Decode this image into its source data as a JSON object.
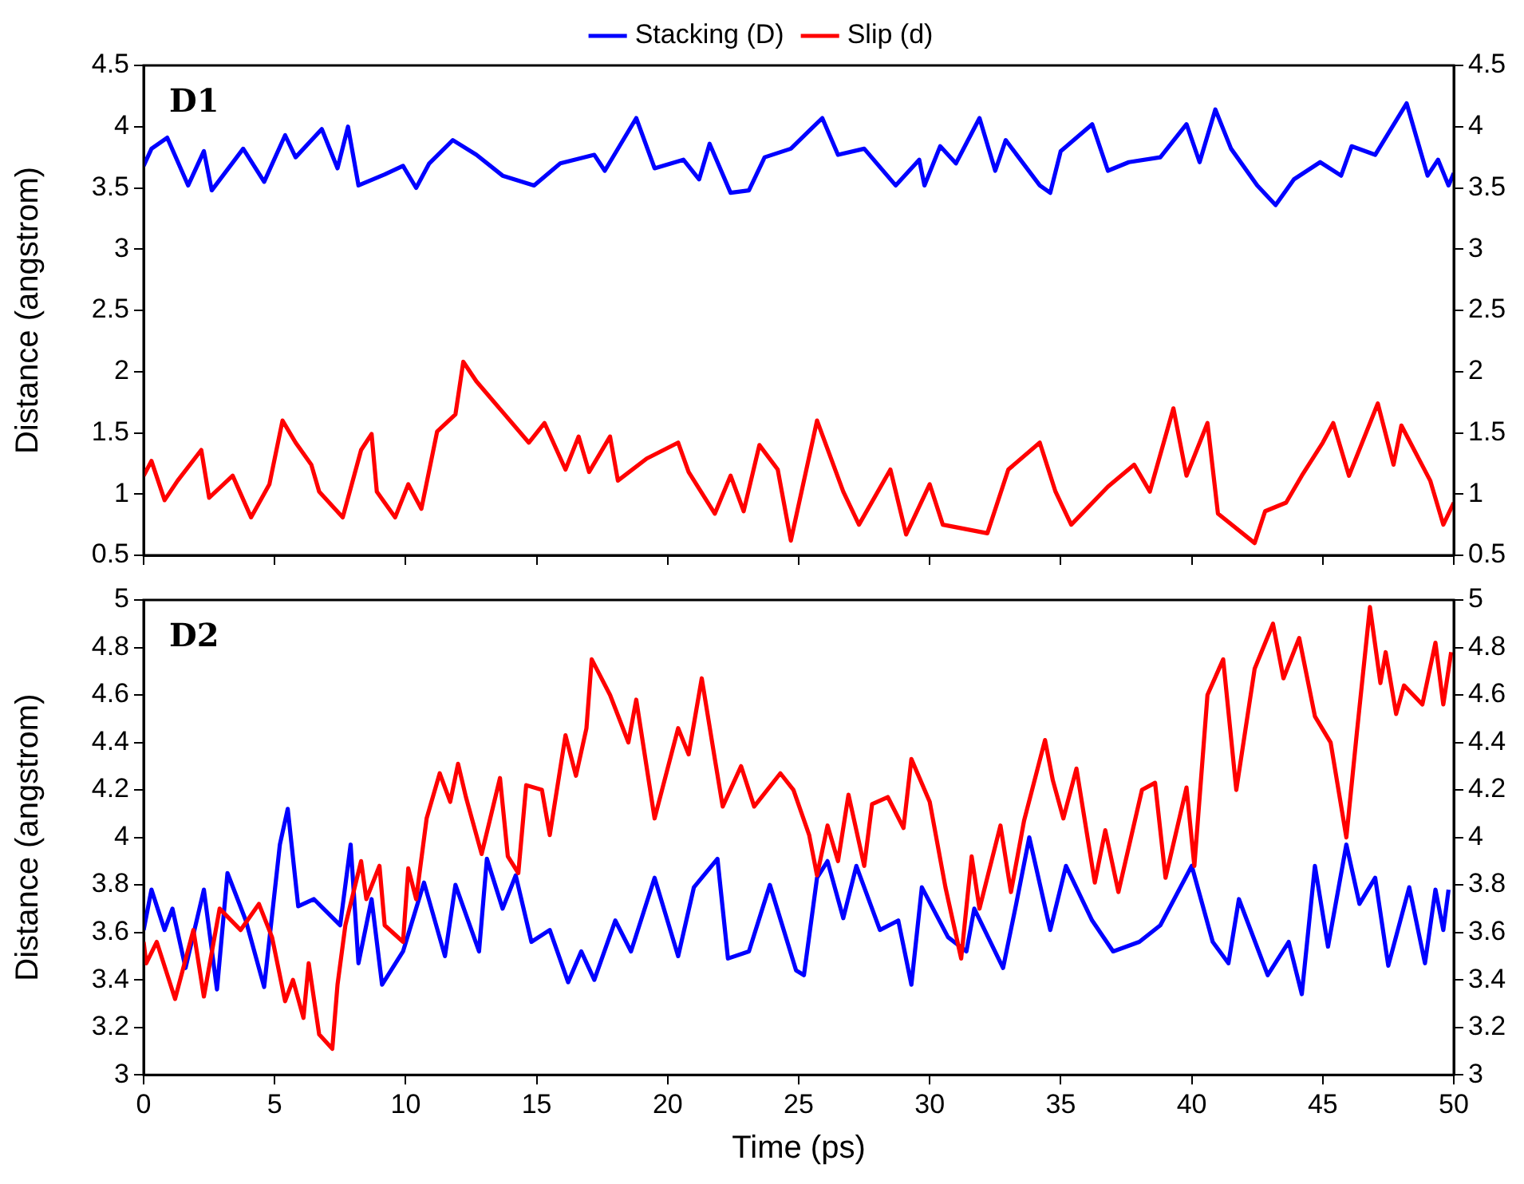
{
  "chart_data": [
    {
      "type": "line",
      "legend": "top",
      "tick_labels": "y",
      "grid": false,
      "marker": "none",
      "line_style": "solid",
      "ylabel": "Distance (angstrom)",
      "annotations": [
        "D1"
      ],
      "xlim": [
        0,
        50
      ],
      "xticks": [
        0,
        5,
        10,
        15,
        20,
        25,
        30,
        35,
        40,
        45,
        50
      ],
      "ylim": [
        0.5,
        4.5
      ],
      "yticks": [
        0.5,
        1,
        1.5,
        2,
        2.5,
        3,
        3.5,
        4,
        4.5
      ],
      "y2lim": [
        0.5,
        4.5
      ],
      "y2ticks": [
        0.5,
        1,
        1.5,
        2,
        2.5,
        3,
        3.5,
        4,
        4.5
      ],
      "series": [
        {
          "name": "Stacking (D)",
          "color": "#0000ff",
          "x": [
            0,
            0.3,
            0.9,
            1.7,
            2.3,
            2.6,
            3.8,
            4.6,
            5.4,
            5.8,
            6.8,
            7.4,
            7.8,
            8.2,
            9.2,
            9.9,
            10.4,
            10.9,
            11.8,
            12.7,
            13.7,
            14.9,
            15.9,
            17.2,
            17.6,
            18.8,
            19.5,
            20.6,
            21.2,
            21.6,
            22.4,
            23.1,
            23.7,
            24.7,
            25.9,
            26.5,
            27.5,
            28.7,
            29.6,
            29.8,
            30.4,
            31,
            31.9,
            32.5,
            32.9,
            34.2,
            34.6,
            35,
            36.2,
            36.8,
            37.6,
            38.8,
            39.8,
            40.3,
            40.9,
            41.5,
            42.5,
            43.2,
            43.9,
            44.9,
            45.7,
            46.1,
            47,
            47.6,
            48.2,
            49,
            49.4,
            49.8,
            50
          ],
          "values": [
            3.68,
            3.82,
            3.91,
            3.52,
            3.8,
            3.48,
            3.82,
            3.55,
            3.93,
            3.75,
            3.98,
            3.66,
            4,
            3.52,
            3.61,
            3.68,
            3.5,
            3.7,
            3.89,
            3.77,
            3.6,
            3.52,
            3.7,
            3.77,
            3.64,
            4.07,
            3.66,
            3.73,
            3.57,
            3.86,
            3.46,
            3.48,
            3.75,
            3.82,
            4.07,
            3.77,
            3.82,
            3.52,
            3.73,
            3.52,
            3.84,
            3.7,
            4.07,
            3.64,
            3.89,
            3.52,
            3.46,
            3.8,
            4.02,
            3.64,
            3.71,
            3.75,
            4.02,
            3.71,
            4.14,
            3.82,
            3.52,
            3.36,
            3.57,
            3.71,
            3.6,
            3.84,
            3.77,
            3.98,
            4.19,
            3.6,
            3.73,
            3.52,
            3.62
          ]
        },
        {
          "name": "Slip (d)",
          "color": "#ff0000",
          "x": [
            0,
            0.3,
            0.8,
            1.3,
            2.2,
            2.5,
            3.4,
            4.1,
            4.8,
            5.3,
            5.8,
            6.4,
            6.7,
            7.6,
            8.3,
            8.7,
            8.9,
            9.6,
            10.1,
            10.6,
            11.2,
            11.9,
            12.2,
            12.7,
            13.7,
            14.7,
            15.3,
            16.1,
            16.6,
            17,
            17.8,
            18.1,
            19.2,
            20.4,
            20.8,
            21.8,
            22.4,
            22.9,
            23.5,
            24.2,
            24.7,
            25.7,
            26.7,
            27.3,
            28.5,
            29.1,
            30,
            30.5,
            32.2,
            33,
            34.2,
            34.8,
            35.4,
            36.8,
            37.8,
            38.4,
            39.3,
            39.8,
            40.6,
            41,
            42.4,
            42.8,
            43.6,
            44.2,
            45,
            45.4,
            46,
            47.1,
            47.7,
            48,
            49.1,
            49.6,
            50
          ],
          "values": [
            1.15,
            1.27,
            0.95,
            1.11,
            1.36,
            0.97,
            1.15,
            0.81,
            1.08,
            1.6,
            1.42,
            1.24,
            1.02,
            0.81,
            1.36,
            1.49,
            1.02,
            0.81,
            1.08,
            0.88,
            1.51,
            1.65,
            2.08,
            1.92,
            1.67,
            1.42,
            1.58,
            1.2,
            1.47,
            1.18,
            1.47,
            1.11,
            1.29,
            1.42,
            1.18,
            0.84,
            1.15,
            0.86,
            1.4,
            1.2,
            0.62,
            1.6,
            1.02,
            0.75,
            1.2,
            0.67,
            1.08,
            0.75,
            0.68,
            1.2,
            1.42,
            1.02,
            0.75,
            1.06,
            1.24,
            1.02,
            1.7,
            1.15,
            1.58,
            0.84,
            0.6,
            0.86,
            0.93,
            1.15,
            1.42,
            1.58,
            1.15,
            1.74,
            1.24,
            1.56,
            1.11,
            0.75,
            0.93
          ]
        }
      ]
    },
    {
      "type": "line",
      "legend": false,
      "grid": false,
      "marker": "none",
      "line_style": "solid",
      "xlabel": "Time (ps)",
      "ylabel": "Distance (angstrom)",
      "annotations": [
        "D2"
      ],
      "xlim": [
        0,
        50
      ],
      "xticks": [
        0,
        5,
        10,
        15,
        20,
        25,
        30,
        35,
        40,
        45,
        50
      ],
      "ylim": [
        3,
        5
      ],
      "yticks": [
        3,
        3.2,
        3.4,
        3.6,
        3.8,
        4,
        4.2,
        4.4,
        4.6,
        4.8,
        5
      ],
      "y2lim": [
        3,
        5
      ],
      "y2ticks": [
        3,
        3.2,
        3.4,
        3.6,
        3.8,
        4,
        4.2,
        4.4,
        4.6,
        4.8,
        5
      ],
      "series": [
        {
          "color": "#ff0000",
          "x": [
            0,
            0.1,
            0.5,
            1.2,
            1.9,
            2.3,
            2.9,
            3.7,
            4.4,
            4.9,
            5.4,
            5.7,
            6.1,
            6.3,
            6.7,
            7.2,
            7.4,
            7.7,
            8.3,
            8.5,
            9,
            9.2,
            9.9,
            10.1,
            10.4,
            10.8,
            11.3,
            11.7,
            12,
            12.3,
            12.9,
            13.6,
            13.9,
            14.3,
            14.6,
            15.2,
            15.5,
            16.1,
            16.5,
            16.9,
            17.1,
            17.8,
            18.5,
            18.8,
            19.5,
            20.4,
            20.8,
            21.3,
            21.8,
            22.1,
            22.8,
            23.3,
            24.3,
            24.8,
            25.4,
            25.7,
            26.1,
            26.5,
            26.9,
            27.5,
            27.8,
            28.4,
            29,
            29.3,
            30,
            30.6,
            31.2,
            31.6,
            31.9,
            32.7,
            33.1,
            33.6,
            34.4,
            34.7,
            35.1,
            35.6,
            36.3,
            36.7,
            37.2,
            38.1,
            38.6,
            39,
            39.8,
            40.1,
            40.6,
            41.2,
            41.7,
            42.4,
            43.1,
            43.5,
            44.1,
            44.7,
            45.3,
            45.9,
            46.3,
            46.8,
            47.2,
            47.4,
            47.8,
            48.1,
            48.8,
            49.3,
            49.6,
            49.9
          ],
          "values": [
            3.56,
            3.47,
            3.56,
            3.32,
            3.61,
            3.33,
            3.7,
            3.61,
            3.72,
            3.58,
            3.31,
            3.4,
            3.24,
            3.47,
            3.17,
            3.11,
            3.38,
            3.63,
            3.9,
            3.74,
            3.88,
            3.63,
            3.56,
            3.87,
            3.74,
            4.08,
            4.27,
            4.15,
            4.31,
            4.17,
            3.93,
            4.25,
            3.92,
            3.85,
            4.22,
            4.2,
            4.01,
            4.43,
            4.26,
            4.46,
            4.75,
            4.6,
            4.4,
            4.58,
            4.08,
            4.46,
            4.35,
            4.67,
            4.33,
            4.13,
            4.3,
            4.13,
            4.27,
            4.2,
            4.01,
            3.84,
            4.05,
            3.9,
            4.18,
            3.88,
            4.14,
            4.17,
            4.04,
            4.33,
            4.15,
            3.79,
            3.49,
            3.92,
            3.7,
            4.05,
            3.77,
            4.07,
            4.41,
            4.24,
            4.08,
            4.29,
            3.81,
            4.03,
            3.77,
            4.2,
            4.23,
            3.83,
            4.21,
            3.88,
            4.6,
            4.75,
            4.2,
            4.71,
            4.9,
            4.67,
            4.84,
            4.51,
            4.4,
            4,
            4.44,
            4.97,
            4.65,
            4.78,
            4.52,
            4.64,
            4.56,
            4.82,
            4.56,
            4.78
          ]
        },
        {
          "color": "#0000ff",
          "x": [
            0,
            0.3,
            0.8,
            1.1,
            1.6,
            2.3,
            2.8,
            3.2,
            3.9,
            4.6,
            5.2,
            5.5,
            5.9,
            6.5,
            7.5,
            7.9,
            8.2,
            8.7,
            9.1,
            9.9,
            10.7,
            11.5,
            11.9,
            12.8,
            13.1,
            13.7,
            14.2,
            14.8,
            15.5,
            16.2,
            16.7,
            17.2,
            18,
            18.6,
            19.5,
            20.4,
            21,
            21.9,
            22.3,
            23.1,
            23.9,
            24.9,
            25.2,
            25.7,
            26.1,
            26.7,
            27.2,
            28.1,
            28.8,
            29.3,
            29.7,
            30.7,
            31.4,
            31.7,
            32.8,
            33.3,
            33.8,
            34.6,
            35.2,
            36.2,
            37,
            38,
            38.8,
            40,
            40.8,
            41.4,
            41.8,
            42.9,
            43.7,
            44.2,
            44.7,
            45.2,
            45.9,
            46.4,
            47,
            47.5,
            48.3,
            48.9,
            49.3,
            49.6,
            49.8
          ],
          "values": [
            3.61,
            3.78,
            3.61,
            3.7,
            3.45,
            3.78,
            3.36,
            3.85,
            3.65,
            3.37,
            3.97,
            4.12,
            3.71,
            3.74,
            3.63,
            3.97,
            3.47,
            3.74,
            3.38,
            3.52,
            3.81,
            3.5,
            3.8,
            3.52,
            3.91,
            3.7,
            3.84,
            3.56,
            3.61,
            3.39,
            3.52,
            3.4,
            3.65,
            3.52,
            3.83,
            3.5,
            3.79,
            3.91,
            3.49,
            3.52,
            3.8,
            3.44,
            3.42,
            3.83,
            3.9,
            3.66,
            3.88,
            3.61,
            3.65,
            3.38,
            3.79,
            3.58,
            3.52,
            3.7,
            3.45,
            3.72,
            4,
            3.61,
            3.88,
            3.65,
            3.52,
            3.56,
            3.63,
            3.88,
            3.56,
            3.47,
            3.74,
            3.42,
            3.56,
            3.34,
            3.88,
            3.54,
            3.97,
            3.72,
            3.83,
            3.46,
            3.79,
            3.47,
            3.78,
            3.61,
            3.78
          ]
        }
      ]
    }
  ]
}
